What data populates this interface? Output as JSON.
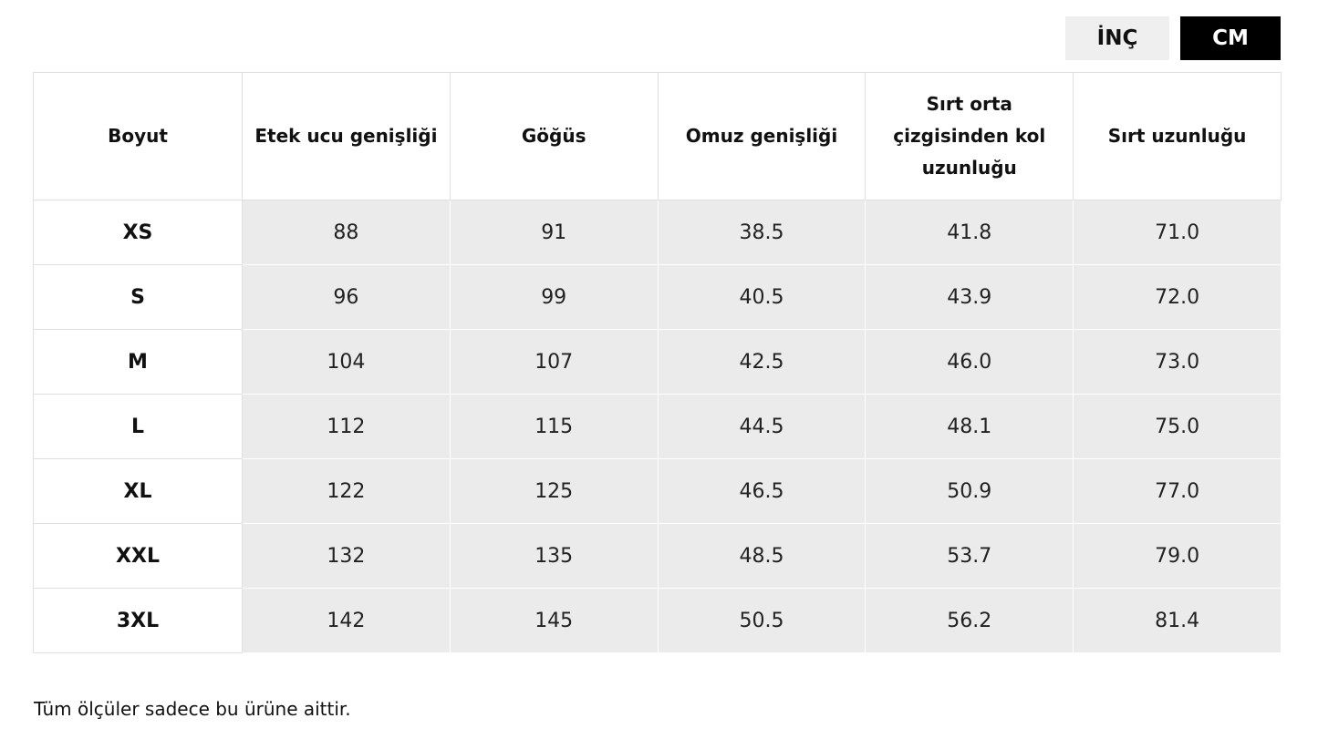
{
  "unit_toggle": {
    "inch_label": "İNÇ",
    "cm_label": "CM",
    "selected": "CM"
  },
  "table": {
    "headers": [
      "Boyut",
      "Etek ucu genişliği",
      "Göğüs",
      "Omuz genişliği",
      "Sırt orta çizgisinden kol uzunluğu",
      "Sırt uzunluğu"
    ],
    "rows": [
      {
        "size": "XS",
        "values": [
          "88",
          "91",
          "38.5",
          "41.8",
          "71.0"
        ]
      },
      {
        "size": "S",
        "values": [
          "96",
          "99",
          "40.5",
          "43.9",
          "72.0"
        ]
      },
      {
        "size": "M",
        "values": [
          "104",
          "107",
          "42.5",
          "46.0",
          "73.0"
        ]
      },
      {
        "size": "L",
        "values": [
          "112",
          "115",
          "44.5",
          "48.1",
          "75.0"
        ]
      },
      {
        "size": "XL",
        "values": [
          "122",
          "125",
          "46.5",
          "50.9",
          "77.0"
        ]
      },
      {
        "size": "XXL",
        "values": [
          "132",
          "135",
          "48.5",
          "53.7",
          "79.0"
        ]
      },
      {
        "size": "3XL",
        "values": [
          "142",
          "145",
          "50.5",
          "56.2",
          "81.4"
        ]
      }
    ]
  },
  "footnote": "Tüm ölçüler sadece bu ürüne aittir.",
  "colors": {
    "active_button_bg": "#000000",
    "inactive_button_bg": "#efefef",
    "value_cell_bg": "#ebebeb",
    "border": "#e0e0e0"
  }
}
